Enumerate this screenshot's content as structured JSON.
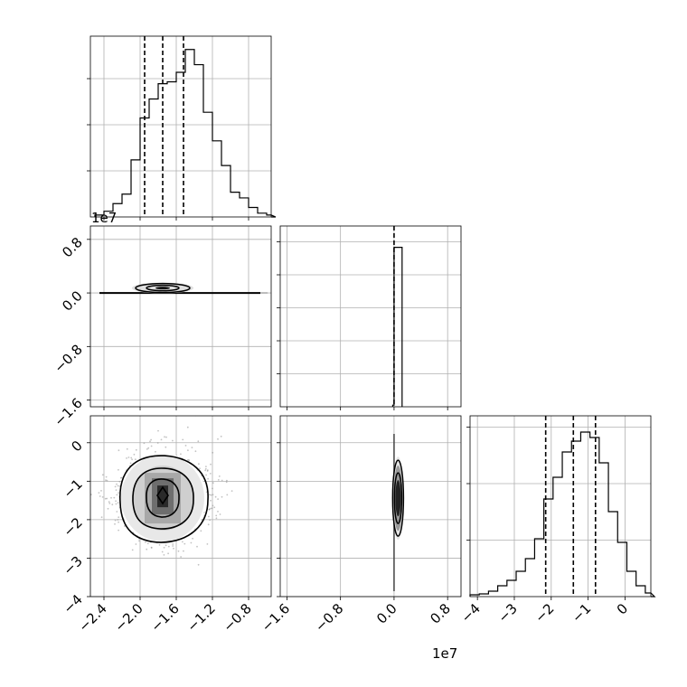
{
  "figure": {
    "offset_text_left": "1e7",
    "offset_text_bottom": "1e7"
  },
  "chart_data": [
    {
      "type": "histogram",
      "panel": "param-0-marginal",
      "xlim": [
        -2.55,
        -0.55
      ],
      "bin_width": 0.1,
      "bin_start": -2.5,
      "counts": [
        0.01,
        0.03,
        0.07,
        0.12,
        0.3,
        0.52,
        0.62,
        0.7,
        0.71,
        0.76,
        0.88,
        0.8,
        0.55,
        0.4,
        0.27,
        0.13,
        0.1,
        0.05,
        0.02,
        0.01,
        0.0
      ],
      "ylim": [
        0,
        0.95
      ],
      "quantile_lines": [
        -1.95,
        -1.75,
        -1.52
      ],
      "x_ticks": [
        -2.4,
        -2.0,
        -1.6,
        -1.2,
        -0.8
      ],
      "y_tick_count": 4,
      "grid": true
    },
    {
      "type": "histogram",
      "panel": "param-1-marginal",
      "xlim": [
        -1.7,
        1.0
      ],
      "bins": [
        {
          "x0": -0.02,
          "x1": 0.0,
          "h": 0.01
        },
        {
          "x0": 0.0,
          "x1": 0.12,
          "h": 0.98
        }
      ],
      "ylim": [
        0,
        1.0
      ],
      "quantile_lines": [
        0.0
      ],
      "x_ticks": [
        -1.6,
        -0.8,
        0.0,
        0.8
      ],
      "y_tick_count": 5,
      "grid": true
    },
    {
      "type": "histogram",
      "panel": "param-2-marginal",
      "xlim": [
        -4.2,
        0.7
      ],
      "bin_width": 0.25,
      "bin_start": -4.2,
      "counts": [
        0.01,
        0.015,
        0.03,
        0.06,
        0.09,
        0.14,
        0.21,
        0.32,
        0.54,
        0.66,
        0.8,
        0.86,
        0.91,
        0.88,
        0.74,
        0.47,
        0.3,
        0.14,
        0.06,
        0.02,
        0.0
      ],
      "ylim": [
        0,
        1.0
      ],
      "quantile_lines": [
        -2.15,
        -1.4,
        -0.8
      ],
      "x_ticks": [
        -4,
        -3,
        -2,
        -1,
        0
      ],
      "y_tick_count": 3,
      "grid": true
    },
    {
      "type": "contour",
      "panel": "param-0-vs-param-1",
      "xlim": [
        -2.55,
        -0.55
      ],
      "ylim": [
        -1.7,
        1.0
      ],
      "center": [
        -1.75,
        0.06
      ],
      "y_ticks": [
        -1.6,
        -0.8,
        0.0,
        0.8
      ],
      "grid": true
    },
    {
      "type": "contour",
      "panel": "param-0-vs-param-2",
      "xlim": [
        -2.55,
        -0.55
      ],
      "ylim": [
        -4.0,
        0.7
      ],
      "center": [
        -1.75,
        -1.3
      ],
      "x_ticks": [
        -2.4,
        -2.0,
        -1.6,
        -1.2,
        -0.8
      ],
      "y_ticks": [
        -4,
        -3,
        -2,
        -1,
        0
      ],
      "grid": true
    },
    {
      "type": "contour",
      "panel": "param-1-vs-param-2",
      "xlim": [
        -1.7,
        1.0
      ],
      "ylim": [
        -4.0,
        0.7
      ],
      "center": [
        0.06,
        -1.3
      ],
      "x_ticks": [
        -1.6,
        -0.8,
        0.0,
        0.8
      ],
      "grid": true
    }
  ]
}
